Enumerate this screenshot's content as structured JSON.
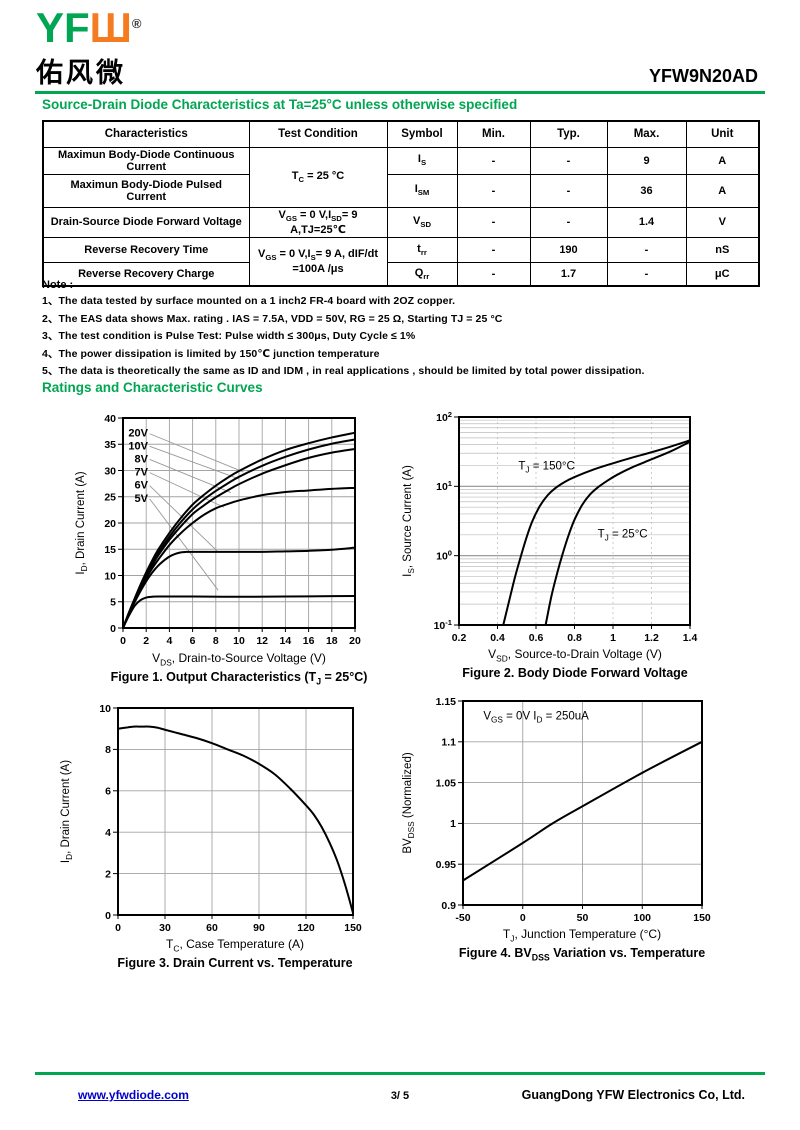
{
  "colors": {
    "accent_green": "#00A651",
    "logo_orange": "#F47B20",
    "link_blue": "#0000CC",
    "grid_gray": "#AAAAAA"
  },
  "header": {
    "logo": {
      "yf": "YF",
      "w": "Ш",
      "registered": "®",
      "chinese": "佑风微"
    },
    "part_number": "YFW9N20AD"
  },
  "sections": {
    "source_drain_title": "Source-Drain Diode Characteristics at Ta=25°C unless otherwise specified",
    "ratings_title": "Ratings and Characteristic Curves"
  },
  "table": {
    "headers": [
      "Characteristics",
      "Test Condition",
      "Symbol",
      "Min.",
      "Typ.",
      "Max.",
      "Unit"
    ],
    "cond_rows_1_2": "T_{C} = 25 °C",
    "cond_rows_4_5": "V_{GS} = 0 V,I_{S}= 9 A, dIF/dt\n=100A /μs",
    "rows": [
      {
        "characteristics": "Maximun Body-Diode Continuous Current",
        "symbol": "I_{S}",
        "min": "-",
        "typ": "-",
        "max": "9",
        "unit": "A"
      },
      {
        "characteristics": "Maximun Body-Diode Pulsed\nCurrent",
        "symbol": "I_{SM}",
        "min": "-",
        "typ": "-",
        "max": "36",
        "unit": "A"
      },
      {
        "characteristics": "Drain-Source Diode Forward Voltage",
        "condition": "V_{GS} = 0 V,I_{SD}= 9 A,TJ=25℃",
        "symbol": "V_{SD}",
        "min": "-",
        "typ": "-",
        "max": "1.4",
        "unit": "V"
      },
      {
        "characteristics": "Reverse Recovery Time",
        "symbol": "t_{rr}",
        "min": "-",
        "typ": "190",
        "max": "-",
        "unit": "nS"
      },
      {
        "characteristics": "Reverse Recovery Charge",
        "symbol": "Q_{rr}",
        "min": "-",
        "typ": "1.7",
        "max": "-",
        "unit": "μC"
      }
    ]
  },
  "notes": {
    "title": "Note :",
    "items": [
      "1、The data tested by surface mounted on a 1 inch2 FR-4 board with 2OZ copper.",
      "2、The EAS data shows Max. rating . IAS = 7.5A, VDD = 50V, RG = 25 Ω, Starting TJ = 25 °C",
      "3、The test condition is Pulse Test: Pulse width ≤ 300μs, Duty Cycle ≤ 1%",
      "4、The power dissipation is limited by 150℃ junction temperature",
      "5、The data is theoretically the same as ID and IDM , in real applications , should be limited by total power dissipation."
    ]
  },
  "chart_data": [
    {
      "id": "fig1",
      "type": "line",
      "title": "Figure 1. Output Characteristics (T_{J} = 25°C)",
      "xlabel": "V_{DS}, Drain-to-Source Voltage (V)",
      "ylabel": "I_{D}, Drain Current (A)",
      "xlim": [
        0,
        20
      ],
      "ylim": [
        0,
        40
      ],
      "yscale": "linear",
      "grid": "solid",
      "xticks": [
        0,
        2,
        4,
        6,
        8,
        10,
        12,
        14,
        16,
        18,
        20
      ],
      "xtick_labels": [
        "0",
        "2",
        "4",
        "6",
        "8",
        "10",
        "12",
        "14",
        "16",
        "18",
        "20"
      ],
      "yticks": [
        0,
        5,
        10,
        15,
        20,
        25,
        30,
        35,
        40
      ],
      "ytick_labels": [
        "0",
        "5",
        "10",
        "15",
        "20",
        "25",
        "30",
        "35",
        "40"
      ],
      "label_weight": "bold",
      "series": [
        {
          "name": "VGS = 20V",
          "points": [
            [
              0,
              0
            ],
            [
              0.5,
              2.9
            ],
            [
              1,
              5.6
            ],
            [
              1.5,
              8.2
            ],
            [
              2,
              10.6
            ],
            [
              2.5,
              12.8
            ],
            [
              3,
              14.8
            ],
            [
              4,
              18.1
            ],
            [
              5,
              21.0
            ],
            [
              6,
              23.5
            ],
            [
              7,
              25.4
            ],
            [
              8,
              27.1
            ],
            [
              9,
              28.6
            ],
            [
              10,
              29.9
            ],
            [
              12,
              32.1
            ],
            [
              14,
              33.9
            ],
            [
              16,
              35.2
            ],
            [
              18,
              36.3
            ],
            [
              20,
              37.2
            ]
          ]
        },
        {
          "name": "VGS = 10V",
          "points": [
            [
              0,
              0
            ],
            [
              0.5,
              2.8
            ],
            [
              1,
              5.4
            ],
            [
              1.5,
              7.9
            ],
            [
              2,
              10.2
            ],
            [
              2.5,
              12.3
            ],
            [
              3,
              14.2
            ],
            [
              4,
              17.4
            ],
            [
              5,
              20.2
            ],
            [
              6,
              22.6
            ],
            [
              7,
              24.5
            ],
            [
              8,
              26.1
            ],
            [
              9,
              27.5
            ],
            [
              10,
              28.8
            ],
            [
              12,
              30.9
            ],
            [
              14,
              32.6
            ],
            [
              16,
              34.0
            ],
            [
              18,
              35.1
            ],
            [
              20,
              35.9
            ]
          ]
        },
        {
          "name": "VGS = 8V",
          "points": [
            [
              0,
              0
            ],
            [
              0.5,
              2.75
            ],
            [
              1,
              5.3
            ],
            [
              1.5,
              7.7
            ],
            [
              2,
              9.9
            ],
            [
              2.5,
              11.9
            ],
            [
              3,
              13.7
            ],
            [
              4,
              16.8
            ],
            [
              5,
              19.4
            ],
            [
              6,
              21.7
            ],
            [
              7,
              23.4
            ],
            [
              8,
              24.9
            ],
            [
              9,
              26.2
            ],
            [
              10,
              27.4
            ],
            [
              12,
              29.4
            ],
            [
              14,
              31.0
            ],
            [
              16,
              32.4
            ],
            [
              18,
              33.4
            ],
            [
              20,
              34.1
            ]
          ]
        },
        {
          "name": "VGS = 7V",
          "points": [
            [
              0,
              0
            ],
            [
              0.5,
              2.7
            ],
            [
              1,
              5.1
            ],
            [
              1.5,
              7.4
            ],
            [
              2,
              9.5
            ],
            [
              2.5,
              11.3
            ],
            [
              3,
              12.9
            ],
            [
              4,
              15.8
            ],
            [
              5,
              18.1
            ],
            [
              6,
              20.0
            ],
            [
              7,
              21.6
            ],
            [
              8,
              22.8
            ],
            [
              9,
              23.6
            ],
            [
              10,
              24.3
            ],
            [
              12,
              25.3
            ],
            [
              14,
              25.9
            ],
            [
              16,
              26.2
            ],
            [
              18,
              26.5
            ],
            [
              20,
              26.7
            ]
          ]
        },
        {
          "name": "VGS = 6V",
          "points": [
            [
              0,
              0
            ],
            [
              0.5,
              2.6
            ],
            [
              1,
              4.9
            ],
            [
              1.5,
              7.0
            ],
            [
              2,
              8.9
            ],
            [
              2.5,
              10.5
            ],
            [
              3,
              11.8
            ],
            [
              3.5,
              12.8
            ],
            [
              4,
              13.6
            ],
            [
              4.5,
              14.1
            ],
            [
              5,
              14.4
            ],
            [
              5.5,
              14.5
            ],
            [
              6,
              14.5
            ],
            [
              8,
              14.5
            ],
            [
              10,
              14.5
            ],
            [
              12,
              14.5
            ],
            [
              14,
              14.6
            ],
            [
              16,
              14.7
            ],
            [
              18,
              14.9
            ],
            [
              20,
              15.3
            ]
          ]
        },
        {
          "name": "VGS = 5V",
          "points": [
            [
              0,
              0
            ],
            [
              0.5,
              2.3
            ],
            [
              1,
              4.2
            ],
            [
              1.5,
              5.3
            ],
            [
              2,
              5.8
            ],
            [
              2.5,
              5.95
            ],
            [
              3,
              6.0
            ],
            [
              6,
              6.0
            ],
            [
              10,
              5.95
            ],
            [
              14,
              6.0
            ],
            [
              17,
              6.05
            ],
            [
              20,
              6.1
            ]
          ]
        }
      ],
      "curve_labels": [
        {
          "text": "20V",
          "x": 2.15,
          "y": 37.2,
          "anchor": "end"
        },
        {
          "text": "10V",
          "x": 2.15,
          "y": 34.8,
          "anchor": "end"
        },
        {
          "text": "8V",
          "x": 2.15,
          "y": 32.3,
          "anchor": "end"
        },
        {
          "text": "7V",
          "x": 2.15,
          "y": 29.8,
          "anchor": "end"
        },
        {
          "text": "6V",
          "x": 2.15,
          "y": 27.3,
          "anchor": "end"
        },
        {
          "text": "5V",
          "x": 2.15,
          "y": 24.8,
          "anchor": "end"
        }
      ],
      "leader_lines": [
        [
          2.3,
          37.0,
          10.4,
          29.7
        ],
        [
          2.3,
          34.6,
          10.0,
          28.4
        ],
        [
          2.3,
          32.1,
          9.3,
          25.8
        ],
        [
          2.3,
          29.6,
          8.7,
          23.0
        ],
        [
          2.3,
          27.1,
          8.1,
          14.7
        ],
        [
          2.3,
          24.6,
          8.2,
          7.2
        ]
      ]
    },
    {
      "id": "fig2",
      "type": "line",
      "title": "Figure 2. Body Diode Forward Voltage",
      "xlabel": "V_{SD}, Source-to-Drain Voltage (V)",
      "ylabel": "I_{S}, Source Current (A)",
      "xlim": [
        0.2,
        1.4
      ],
      "ylim": [
        0.1,
        100
      ],
      "yscale": "log",
      "grid": "log",
      "xticks": [
        0.2,
        0.4,
        0.6,
        0.8,
        1,
        1.2,
        1.4
      ],
      "xtick_labels": [
        "0.2",
        "0.4",
        "0.6",
        "0.8",
        "1",
        "1.2",
        "1.4"
      ],
      "yticks": [
        0.1,
        1,
        10,
        100
      ],
      "ytick_labels": [
        "10^{-1}",
        "10^{0}",
        "10^{1}",
        "10^{2}"
      ],
      "series": [
        {
          "name": "T_{J} = 150°C",
          "points": [
            [
              0.43,
              0.1
            ],
            [
              0.46,
              0.22
            ],
            [
              0.49,
              0.48
            ],
            [
              0.52,
              0.95
            ],
            [
              0.55,
              1.8
            ],
            [
              0.58,
              3.1
            ],
            [
              0.62,
              5.2
            ],
            [
              0.66,
              7.4
            ],
            [
              0.7,
              9.4
            ],
            [
              0.75,
              11.6
            ],
            [
              0.8,
              13.6
            ],
            [
              0.9,
              17.5
            ],
            [
              1.0,
              21.5
            ],
            [
              1.1,
              26
            ],
            [
              1.2,
              31
            ],
            [
              1.3,
              37.5
            ],
            [
              1.4,
              46
            ]
          ]
        },
        {
          "name": "T_{J} = 25°C",
          "points": [
            [
              0.65,
              0.1
            ],
            [
              0.68,
              0.26
            ],
            [
              0.71,
              0.56
            ],
            [
              0.74,
              1.1
            ],
            [
              0.77,
              2.0
            ],
            [
              0.8,
              3.3
            ],
            [
              0.84,
              5.4
            ],
            [
              0.88,
              7.6
            ],
            [
              0.92,
              9.6
            ],
            [
              0.97,
              12
            ],
            [
              1.02,
              14.6
            ],
            [
              1.1,
              18.8
            ],
            [
              1.2,
              24.5
            ],
            [
              1.3,
              32
            ],
            [
              1.4,
              44
            ]
          ]
        }
      ],
      "curve_labels": [
        {
          "text": "T_{J} = 150°C",
          "x": 0.655,
          "y": 20,
          "anchor": "middle"
        },
        {
          "text": "T_{J} = 25°C",
          "x": 1.05,
          "y": 2.1,
          "anchor": "middle"
        }
      ]
    },
    {
      "id": "fig3",
      "type": "line",
      "title": "Figure 3. Drain Current vs. Temperature",
      "xlabel": "T_{C}, Case Temperature (A)",
      "ylabel": "I_{D}, Drain Current (A)",
      "xlim": [
        0,
        150
      ],
      "ylim": [
        0,
        10
      ],
      "yscale": "linear",
      "grid": "solid",
      "xticks": [
        0,
        30,
        60,
        90,
        120,
        150
      ],
      "xtick_labels": [
        "0",
        "30",
        "60",
        "90",
        "120",
        "150"
      ],
      "yticks": [
        0,
        2,
        4,
        6,
        8,
        10
      ],
      "ytick_labels": [
        "0",
        "2",
        "4",
        "6",
        "8",
        "10"
      ],
      "series": [
        {
          "name": "ID vs TC",
          "points": [
            [
              0,
              9.0
            ],
            [
              5,
              9.05
            ],
            [
              10,
              9.1
            ],
            [
              15,
              9.1
            ],
            [
              20,
              9.1
            ],
            [
              25,
              9.05
            ],
            [
              30,
              8.95
            ],
            [
              40,
              8.75
            ],
            [
              50,
              8.55
            ],
            [
              60,
              8.3
            ],
            [
              70,
              8.0
            ],
            [
              80,
              7.7
            ],
            [
              90,
              7.3
            ],
            [
              100,
              6.8
            ],
            [
              110,
              6.1
            ],
            [
              120,
              5.3
            ],
            [
              125,
              4.85
            ],
            [
              130,
              4.25
            ],
            [
              135,
              3.5
            ],
            [
              140,
              2.6
            ],
            [
              145,
              1.45
            ],
            [
              150,
              0.1
            ]
          ]
        }
      ]
    },
    {
      "id": "fig4",
      "type": "line",
      "title": "Figure 4. BV_{DSS} Variation vs. Temperature",
      "xlabel": "T_{J}, Junction Temperature (°C)",
      "ylabel": "BV_{DSS} (Normalized)",
      "xlim": [
        -50,
        150
      ],
      "ylim": [
        0.9,
        1.15
      ],
      "yscale": "linear",
      "grid": "solid",
      "xticks": [
        -50,
        0,
        50,
        100,
        150
      ],
      "xtick_labels": [
        "-50",
        "0",
        "50",
        "100",
        "150"
      ],
      "yticks": [
        0.9,
        0.95,
        1,
        1.05,
        1.1,
        1.15
      ],
      "ytick_labels": [
        "0.9",
        "0.95",
        "1",
        "1.05",
        "1.1",
        "1.15"
      ],
      "series": [
        {
          "name": "BVDSS normalized",
          "points": [
            [
              -50,
              0.93
            ],
            [
              0,
              0.976
            ],
            [
              25,
              1.0
            ],
            [
              50,
              1.021
            ],
            [
              100,
              1.062
            ],
            [
              150,
              1.1
            ]
          ]
        }
      ],
      "curve_labels": [
        {
          "text": "V_{GS} = 0V I_{D} = 250uA",
          "x": -33,
          "y": 1.132,
          "anchor": "start"
        }
      ]
    }
  ],
  "footer": {
    "website": "www.yfwdiode.com",
    "page": "3/ 5",
    "company": "GuangDong YFW Electronics Co, Ltd."
  }
}
